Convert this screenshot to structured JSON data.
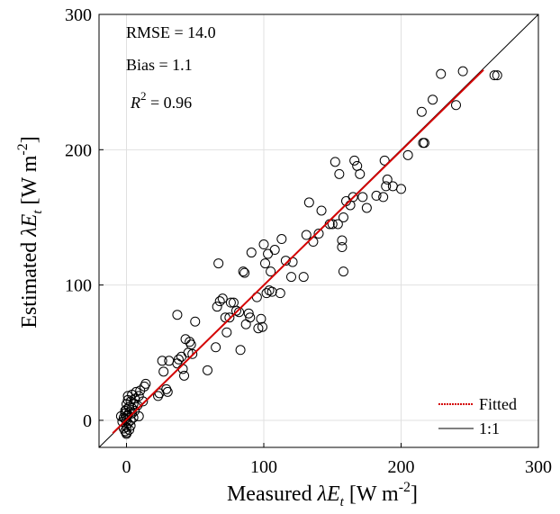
{
  "chart_data": {
    "type": "scatter",
    "xlabel": "Measured λE_t [W m^-2]",
    "ylabel": "Estimated λE_t [W m^-2]",
    "xlabel_parts": {
      "prefix": "Measured ",
      "symbol": "λE",
      "subscript": "t",
      "units_prefix": " [W m",
      "units_exp": "-2",
      "units_suffix": "]"
    },
    "ylabel_parts": {
      "prefix": "Estimated ",
      "symbol": "λE",
      "subscript": "t",
      "units_prefix": " [W m",
      "units_exp": "-2",
      "units_suffix": "]"
    },
    "xlim": [
      -20,
      300
    ],
    "ylim": [
      -20,
      300
    ],
    "xticks": [
      0,
      100,
      200,
      300
    ],
    "yticks": [
      0,
      100,
      200,
      300
    ],
    "grid": true,
    "stats": {
      "rmse": "RMSE = 14.0",
      "bias": "Bias = 1.1",
      "r2_symbol": "R",
      "r2_exp": "2",
      "r2_value": " = 0.96"
    },
    "legend": {
      "placement": "bottom-right",
      "fitted": "Fitted",
      "one_to_one": "1:1"
    },
    "colors": {
      "fitted": "#d40000",
      "one_to_one": "#000000",
      "points": "#000000",
      "grid": "#e0e0e0"
    },
    "fitted_line": {
      "x": [
        -10,
        260
      ],
      "y": [
        -9.5,
        259
      ]
    },
    "points": [
      [
        -3,
        -1
      ],
      [
        -2,
        2
      ],
      [
        -1,
        5
      ],
      [
        -1,
        7
      ],
      [
        0,
        0
      ],
      [
        0,
        3
      ],
      [
        0,
        8
      ],
      [
        0,
        12
      ],
      [
        0,
        -5
      ],
      [
        0,
        -9
      ],
      [
        -1,
        -8
      ],
      [
        0,
        -10
      ],
      [
        1,
        4
      ],
      [
        1,
        15
      ],
      [
        1,
        18
      ],
      [
        2,
        6
      ],
      [
        2,
        10
      ],
      [
        3,
        0
      ],
      [
        3,
        14
      ],
      [
        3,
        -4
      ],
      [
        4,
        9
      ],
      [
        4,
        19
      ],
      [
        5,
        2
      ],
      [
        5,
        12
      ],
      [
        6,
        7
      ],
      [
        6,
        16
      ],
      [
        7,
        21
      ],
      [
        8,
        11
      ],
      [
        9,
        3
      ],
      [
        9,
        18
      ],
      [
        10,
        22
      ],
      [
        12,
        14
      ],
      [
        13,
        25
      ],
      [
        14,
        27
      ],
      [
        -4,
        3
      ],
      [
        -2,
        -6
      ],
      [
        -1,
        1
      ],
      [
        1,
        -2
      ],
      [
        2,
        -7
      ],
      [
        4,
        5
      ],
      [
        23,
        18
      ],
      [
        24,
        20
      ],
      [
        26,
        44
      ],
      [
        27,
        36
      ],
      [
        29,
        23
      ],
      [
        30,
        21
      ],
      [
        31,
        44
      ],
      [
        37,
        42
      ],
      [
        37,
        78
      ],
      [
        38,
        45
      ],
      [
        40,
        47
      ],
      [
        41,
        38
      ],
      [
        42,
        33
      ],
      [
        43,
        60
      ],
      [
        45,
        50
      ],
      [
        46,
        58
      ],
      [
        47,
        56
      ],
      [
        48,
        49
      ],
      [
        50,
        73
      ],
      [
        59,
        37
      ],
      [
        65,
        54
      ],
      [
        66,
        84
      ],
      [
        67,
        116
      ],
      [
        68,
        88
      ],
      [
        70,
        90
      ],
      [
        72,
        76
      ],
      [
        73,
        65
      ],
      [
        75,
        76
      ],
      [
        76,
        87
      ],
      [
        78,
        87
      ],
      [
        80,
        81
      ],
      [
        82,
        80
      ],
      [
        83,
        52
      ],
      [
        85,
        110
      ],
      [
        86,
        109
      ],
      [
        87,
        71
      ],
      [
        89,
        79
      ],
      [
        90,
        76
      ],
      [
        91,
        124
      ],
      [
        95,
        91
      ],
      [
        96,
        68
      ],
      [
        98,
        75
      ],
      [
        99,
        69
      ],
      [
        100,
        130
      ],
      [
        101,
        116
      ],
      [
        102,
        94
      ],
      [
        103,
        123
      ],
      [
        104,
        96
      ],
      [
        105,
        110
      ],
      [
        106,
        95
      ],
      [
        108,
        126
      ],
      [
        112,
        94
      ],
      [
        113,
        134
      ],
      [
        116,
        118
      ],
      [
        120,
        106
      ],
      [
        121,
        117
      ],
      [
        129,
        106
      ],
      [
        131,
        137
      ],
      [
        133,
        161
      ],
      [
        136,
        132
      ],
      [
        140,
        138
      ],
      [
        142,
        155
      ],
      [
        148,
        145
      ],
      [
        150,
        145
      ],
      [
        152,
        191
      ],
      [
        154,
        145
      ],
      [
        155,
        182
      ],
      [
        157,
        133
      ],
      [
        157,
        128
      ],
      [
        158,
        110
      ],
      [
        158,
        150
      ],
      [
        160,
        162
      ],
      [
        163,
        159
      ],
      [
        165,
        165
      ],
      [
        166,
        192
      ],
      [
        168,
        188
      ],
      [
        170,
        182
      ],
      [
        172,
        165
      ],
      [
        175,
        157
      ],
      [
        182,
        166
      ],
      [
        187,
        165
      ],
      [
        188,
        192
      ],
      [
        189,
        173
      ],
      [
        190,
        178
      ],
      [
        194,
        173
      ],
      [
        200,
        171
      ],
      [
        205,
        196
      ],
      [
        215,
        228
      ],
      [
        216,
        205
      ],
      [
        217,
        205
      ],
      [
        223,
        237
      ],
      [
        229,
        256
      ],
      [
        240,
        233
      ],
      [
        245,
        258
      ],
      [
        268,
        255
      ],
      [
        270,
        255
      ]
    ]
  }
}
